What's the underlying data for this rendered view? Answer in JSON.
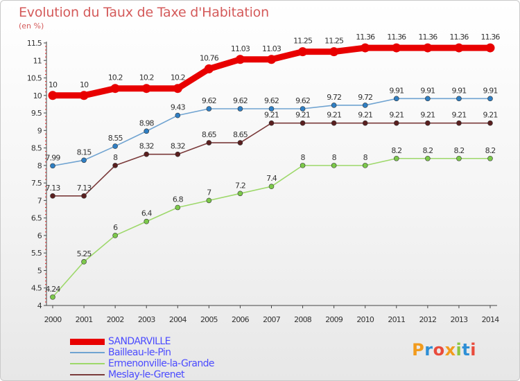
{
  "title": "Evolution du Taux de Taxe d'Habitation",
  "subtitle": "(en %)",
  "logo": {
    "text": "Proxiti",
    "colors": [
      "#f29b1d",
      "#2e8fd6",
      "#e94b3c",
      "#f29b1d",
      "#8cc63f",
      "#2e8fd6",
      "#e94b3c"
    ]
  },
  "chart_data": {
    "type": "line",
    "x": [
      "2000",
      "2001",
      "2002",
      "2003",
      "2004",
      "2005",
      "2006",
      "2007",
      "2008",
      "2009",
      "2010",
      "2011",
      "2012",
      "2013",
      "2014"
    ],
    "ylim": [
      4,
      11.5
    ],
    "yticks": [
      "4",
      "4.5",
      "5",
      "5.5",
      "6",
      "6.5",
      "7",
      "7.5",
      "8",
      "8.5",
      "9",
      "9.5",
      "10",
      "10.5",
      "11",
      "11.5"
    ],
    "grid": false,
    "legend_position": "bottom-left",
    "series": [
      {
        "name": "SANDARVILLE",
        "color": "#e80000",
        "line_width": "thick",
        "values": [
          10,
          10,
          10.2,
          10.2,
          10.2,
          10.76,
          11.03,
          11.03,
          11.25,
          11.25,
          11.36,
          11.36,
          11.36,
          11.36,
          11.36
        ],
        "labels": [
          "10",
          "10",
          "10.2",
          "10.2",
          "10.2",
          "10.76",
          "11.03",
          "11.03",
          "11.25",
          "11.25",
          "11.36",
          "11.36",
          "11.36",
          "11.36",
          "11.36"
        ]
      },
      {
        "name": "Bailleau-le-Pin",
        "color": "#6fa3d1",
        "marker": "#2f7fc4",
        "values": [
          7.99,
          8.15,
          8.55,
          8.98,
          9.43,
          9.62,
          9.62,
          9.62,
          9.62,
          9.72,
          9.72,
          9.91,
          9.91,
          9.91,
          9.91
        ],
        "labels": [
          "7.99",
          "8.15",
          "8.55",
          "8.98",
          "9.43",
          "9.62",
          "9.62",
          "9.62",
          "9.62",
          "9.72",
          "9.72",
          "9.91",
          "9.91",
          "9.91",
          "9.91"
        ]
      },
      {
        "name": "Ermenonville-la-Grande",
        "color": "#9dd86a",
        "marker": "#7cc94a",
        "values": [
          4.24,
          5.25,
          6,
          6.4,
          6.8,
          7,
          7.2,
          7.4,
          8,
          8,
          8,
          8.2,
          8.2,
          8.2,
          8.2
        ],
        "labels": [
          "4.24",
          "5.25",
          "6",
          "6.4",
          "6.8",
          "7",
          "7.2",
          "7.4",
          "8",
          "8",
          "8",
          "8.2",
          "8.2",
          "8.2",
          "8.2"
        ]
      },
      {
        "name": "Meslay-le-Grenet",
        "color": "#7a3a3a",
        "marker": "#5a1f1f",
        "values": [
          7.13,
          7.13,
          8,
          8.32,
          8.32,
          8.65,
          8.65,
          9.21,
          9.21,
          9.21,
          9.21,
          9.21,
          9.21,
          9.21,
          9.21
        ],
        "labels": [
          "7.13",
          "7.13",
          "8",
          "8.32",
          "8.32",
          "8.65",
          "8.65",
          "9.21",
          "9.21",
          "9.21",
          "9.21",
          "9.21",
          "9.21",
          "9.21",
          "9.21"
        ]
      }
    ]
  }
}
